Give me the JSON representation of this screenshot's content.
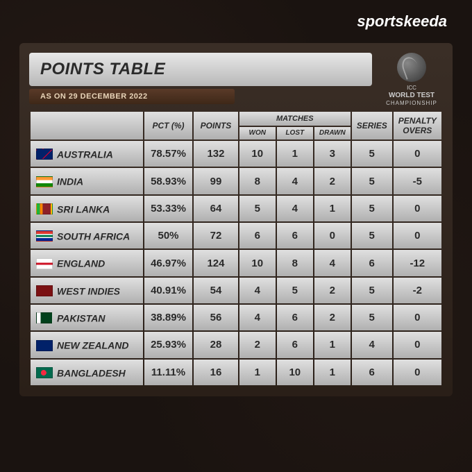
{
  "brand": "sportskeeda",
  "title": "POINTS TABLE",
  "date_label": "AS ON 29 DECEMBER 2022",
  "badge": {
    "line1": "ICC",
    "line2": "WORLD TEST",
    "line3": "CHAMPIONSHIP"
  },
  "headers": {
    "pct": "PCT (%)",
    "points": "POINTS",
    "matches": "MATCHES",
    "won": "WON",
    "lost": "LOST",
    "drawn": "DRAWN",
    "series": "SERIES",
    "penalty": "PENALTY OVERS"
  },
  "col_widths": {
    "team": "28%",
    "pct": "12%",
    "points": "11%",
    "sub": "9%",
    "series": "10%",
    "penalty": "12%"
  },
  "styling": {
    "cell_gradient_top": "#e0e0e0",
    "cell_gradient_bottom": "#b0b0b0",
    "container_bg_top": "#3a2e26",
    "container_bg_bottom": "#2a1f18",
    "date_bg_top": "#5a3a28",
    "date_bg_bottom": "#3e2818",
    "text_color": "#2a2a2a",
    "body_bg": "#1a1310",
    "header_fontsize": 12,
    "cell_fontsize": 15,
    "title_fontsize": 24
  },
  "flags": {
    "AUSTRALIA": "linear-gradient(135deg,#012169 60%,#e4002b 60%,#e4002b 65%,#012169 65%)",
    "INDIA": "linear-gradient(180deg,#ff9933 33%,#fff 33%,#fff 66%,#138808 66%)",
    "SRI LANKA": "linear-gradient(90deg,#1eb53a 20%,#ff7900 20%,#ff7900 35%,#ffb700 35%,#8d2029 40%,#8d2029 90%,#ffb700 90%)",
    "SOUTH AFRICA": "linear-gradient(180deg,#de3831 30%,#fff 30%,#fff 40%,#007a4d 40%,#007a4d 60%,#fff 60%,#fff 70%,#002395 70%)",
    "ENGLAND": "linear-gradient(180deg,#fff 40%,#ce1124 40%,#ce1124 60%,#fff 60%),linear-gradient(90deg,#fff 45%,#ce1124 45%,#ce1124 55%,#fff 55%)",
    "WEST INDIES": "linear-gradient(180deg,#7b1113 100%,#7b1113 100%)",
    "PAKISTAN": "linear-gradient(90deg,#fff 25%,#01411c 25%)",
    "NEW ZEALAND": "linear-gradient(135deg,#012169 100%,#012169 100%)",
    "BANGLADESH": "radial-gradient(circle at 45% 50%,#f42a41 28%,#006a4e 29%)"
  },
  "rows": [
    {
      "team": "AUSTRALIA",
      "pct": "78.57%",
      "points": "132",
      "won": "10",
      "lost": "1",
      "drawn": "3",
      "series": "5",
      "penalty": "0"
    },
    {
      "team": "INDIA",
      "pct": "58.93%",
      "points": "99",
      "won": "8",
      "lost": "4",
      "drawn": "2",
      "series": "5",
      "penalty": "-5"
    },
    {
      "team": "SRI LANKA",
      "pct": "53.33%",
      "points": "64",
      "won": "5",
      "lost": "4",
      "drawn": "1",
      "series": "5",
      "penalty": "0"
    },
    {
      "team": "SOUTH AFRICA",
      "pct": "50%",
      "points": "72",
      "won": "6",
      "lost": "6",
      "drawn": "0",
      "series": "5",
      "penalty": "0"
    },
    {
      "team": "ENGLAND",
      "pct": "46.97%",
      "points": "124",
      "won": "10",
      "lost": "8",
      "drawn": "4",
      "series": "6",
      "penalty": "-12"
    },
    {
      "team": "WEST INDIES",
      "pct": "40.91%",
      "points": "54",
      "won": "4",
      "lost": "5",
      "drawn": "2",
      "series": "5",
      "penalty": "-2"
    },
    {
      "team": "PAKISTAN",
      "pct": "38.89%",
      "points": "56",
      "won": "4",
      "lost": "6",
      "drawn": "2",
      "series": "5",
      "penalty": "0"
    },
    {
      "team": "NEW ZEALAND",
      "pct": "25.93%",
      "points": "28",
      "won": "2",
      "lost": "6",
      "drawn": "1",
      "series": "4",
      "penalty": "0"
    },
    {
      "team": "BANGLADESH",
      "pct": "11.11%",
      "points": "16",
      "won": "1",
      "lost": "10",
      "drawn": "1",
      "series": "6",
      "penalty": "0"
    }
  ]
}
